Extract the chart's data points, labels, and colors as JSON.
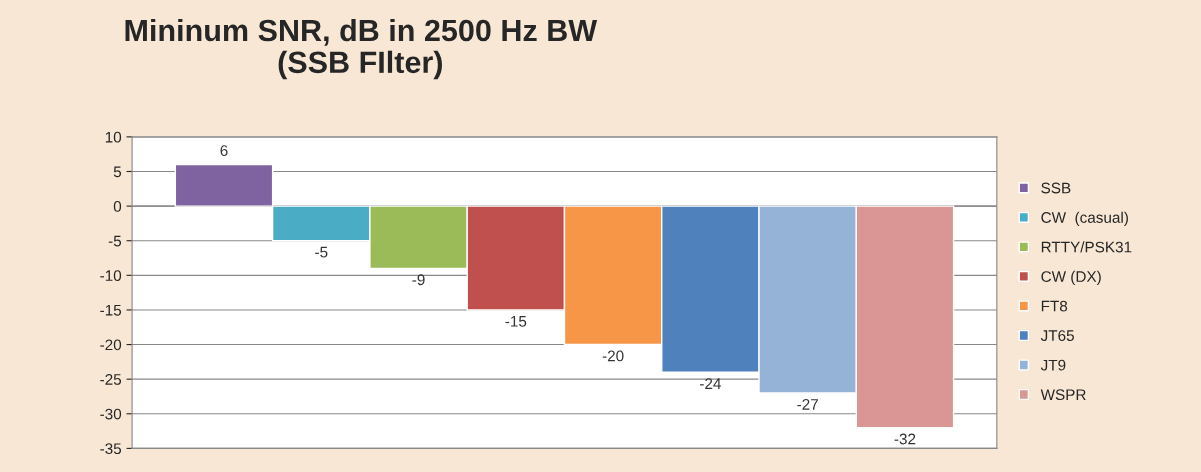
{
  "chart_data": {
    "type": "bar",
    "title": "Mininum SNR, dB in 2500 Hz BW\n(SSB FIlter)",
    "categories": [
      null
    ],
    "series": [
      {
        "name": "SSB",
        "color": "#7f63a1",
        "values": [
          6
        ]
      },
      {
        "name": "CW  (casual)",
        "color": "#4bacc6",
        "values": [
          -5
        ]
      },
      {
        "name": "RTTY/PSK31",
        "color": "#9bbb59",
        "values": [
          -9
        ]
      },
      {
        "name": "CW (DX)",
        "color": "#c0504d",
        "values": [
          -15
        ]
      },
      {
        "name": "FT8",
        "color": "#f79646",
        "values": [
          -20
        ]
      },
      {
        "name": "JT65",
        "color": "#4f81bd",
        "values": [
          -24
        ]
      },
      {
        "name": "JT9",
        "color": "#95b3d7",
        "values": [
          -27
        ]
      },
      {
        "name": "WSPR",
        "color": "#d99694",
        "values": [
          -32
        ]
      }
    ],
    "ylim": [
      -35,
      10
    ],
    "yticks": [
      -35,
      -30,
      -25,
      -20,
      -15,
      -10,
      -5,
      0,
      5,
      10
    ],
    "grid": "y",
    "legend": "right",
    "data_labels": true
  }
}
